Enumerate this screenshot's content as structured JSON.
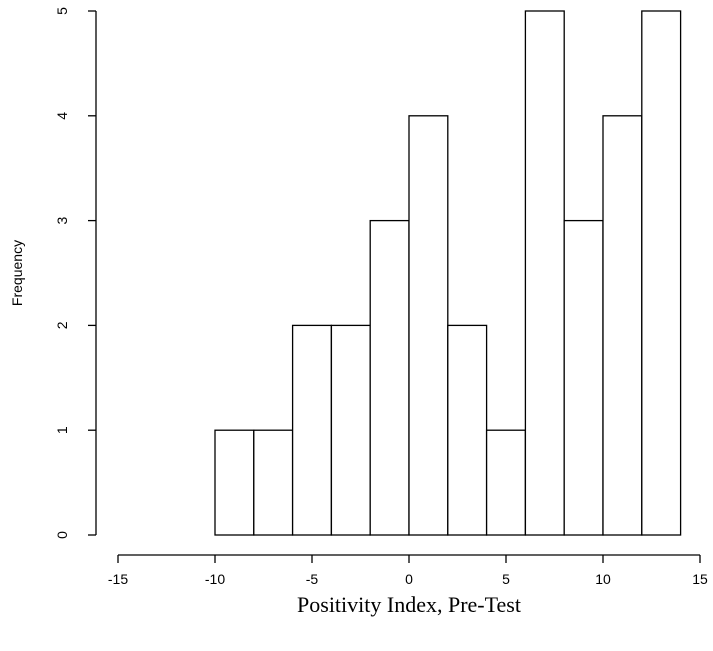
{
  "chart_data": {
    "type": "bar",
    "subtype": "histogram",
    "bin_edges": [
      -10,
      -8,
      -6,
      -4,
      -2,
      0,
      2,
      4,
      6,
      8,
      10,
      12,
      14
    ],
    "values": [
      1,
      1,
      2,
      2,
      3,
      4,
      2,
      1,
      5,
      3,
      4,
      5
    ],
    "xlabel": "Positivity Index, Pre-Test",
    "ylabel": "Frequency",
    "xlim": [
      -15,
      15
    ],
    "ylim": [
      0,
      5
    ],
    "xticks": [
      -15,
      -10,
      -5,
      0,
      5,
      10,
      15
    ],
    "yticks": [
      0,
      1,
      2,
      3,
      4,
      5
    ],
    "grid": false,
    "bar_fill": "#ffffff",
    "bar_stroke": "#000000"
  }
}
